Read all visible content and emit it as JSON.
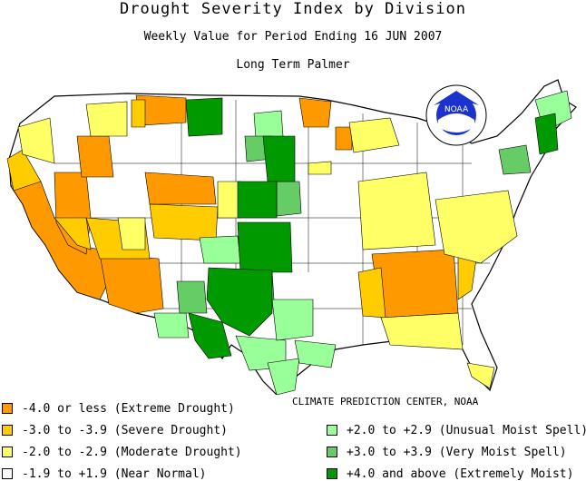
{
  "title": "Drought Severity Index by Division",
  "subtitle": "Weekly Value for Period Ending 16 JUN 2007",
  "index_name": "Long Term Palmer",
  "credit": "CLIMATE PREDICTION CENTER, NOAA",
  "logo": {
    "text": "NOAA",
    "icon": "noaa-logo-icon"
  },
  "colors": {
    "extreme_drought": "#ff9900",
    "severe_drought": "#ffcc00",
    "moderate_drought": "#ffff66",
    "near_normal": "#ffffff",
    "unusual_moist": "#99ff99",
    "very_moist": "#66cc66",
    "extremely_moist": "#009900"
  },
  "legend": [
    {
      "label": "-4.0 or less (Extreme Drought)",
      "color": "#ff9900"
    },
    {
      "label": "-3.0 to -3.9 (Severe Drought)",
      "color": "#ffcc00"
    },
    {
      "label": "-2.0 to -2.9 (Moderate Drought)",
      "color": "#ffff66"
    },
    {
      "label": "-1.9 to +1.9 (Near Normal)",
      "color": "#ffffff"
    },
    {
      "label": "+2.0 to +2.9 (Unusual Moist Spell)",
      "color": "#99ff99"
    },
    {
      "label": "+3.0 to +3.9 (Very Moist Spell)",
      "color": "#66cc66"
    },
    {
      "label": "+4.0 and above (Extremely Moist)",
      "color": "#009900"
    }
  ]
}
